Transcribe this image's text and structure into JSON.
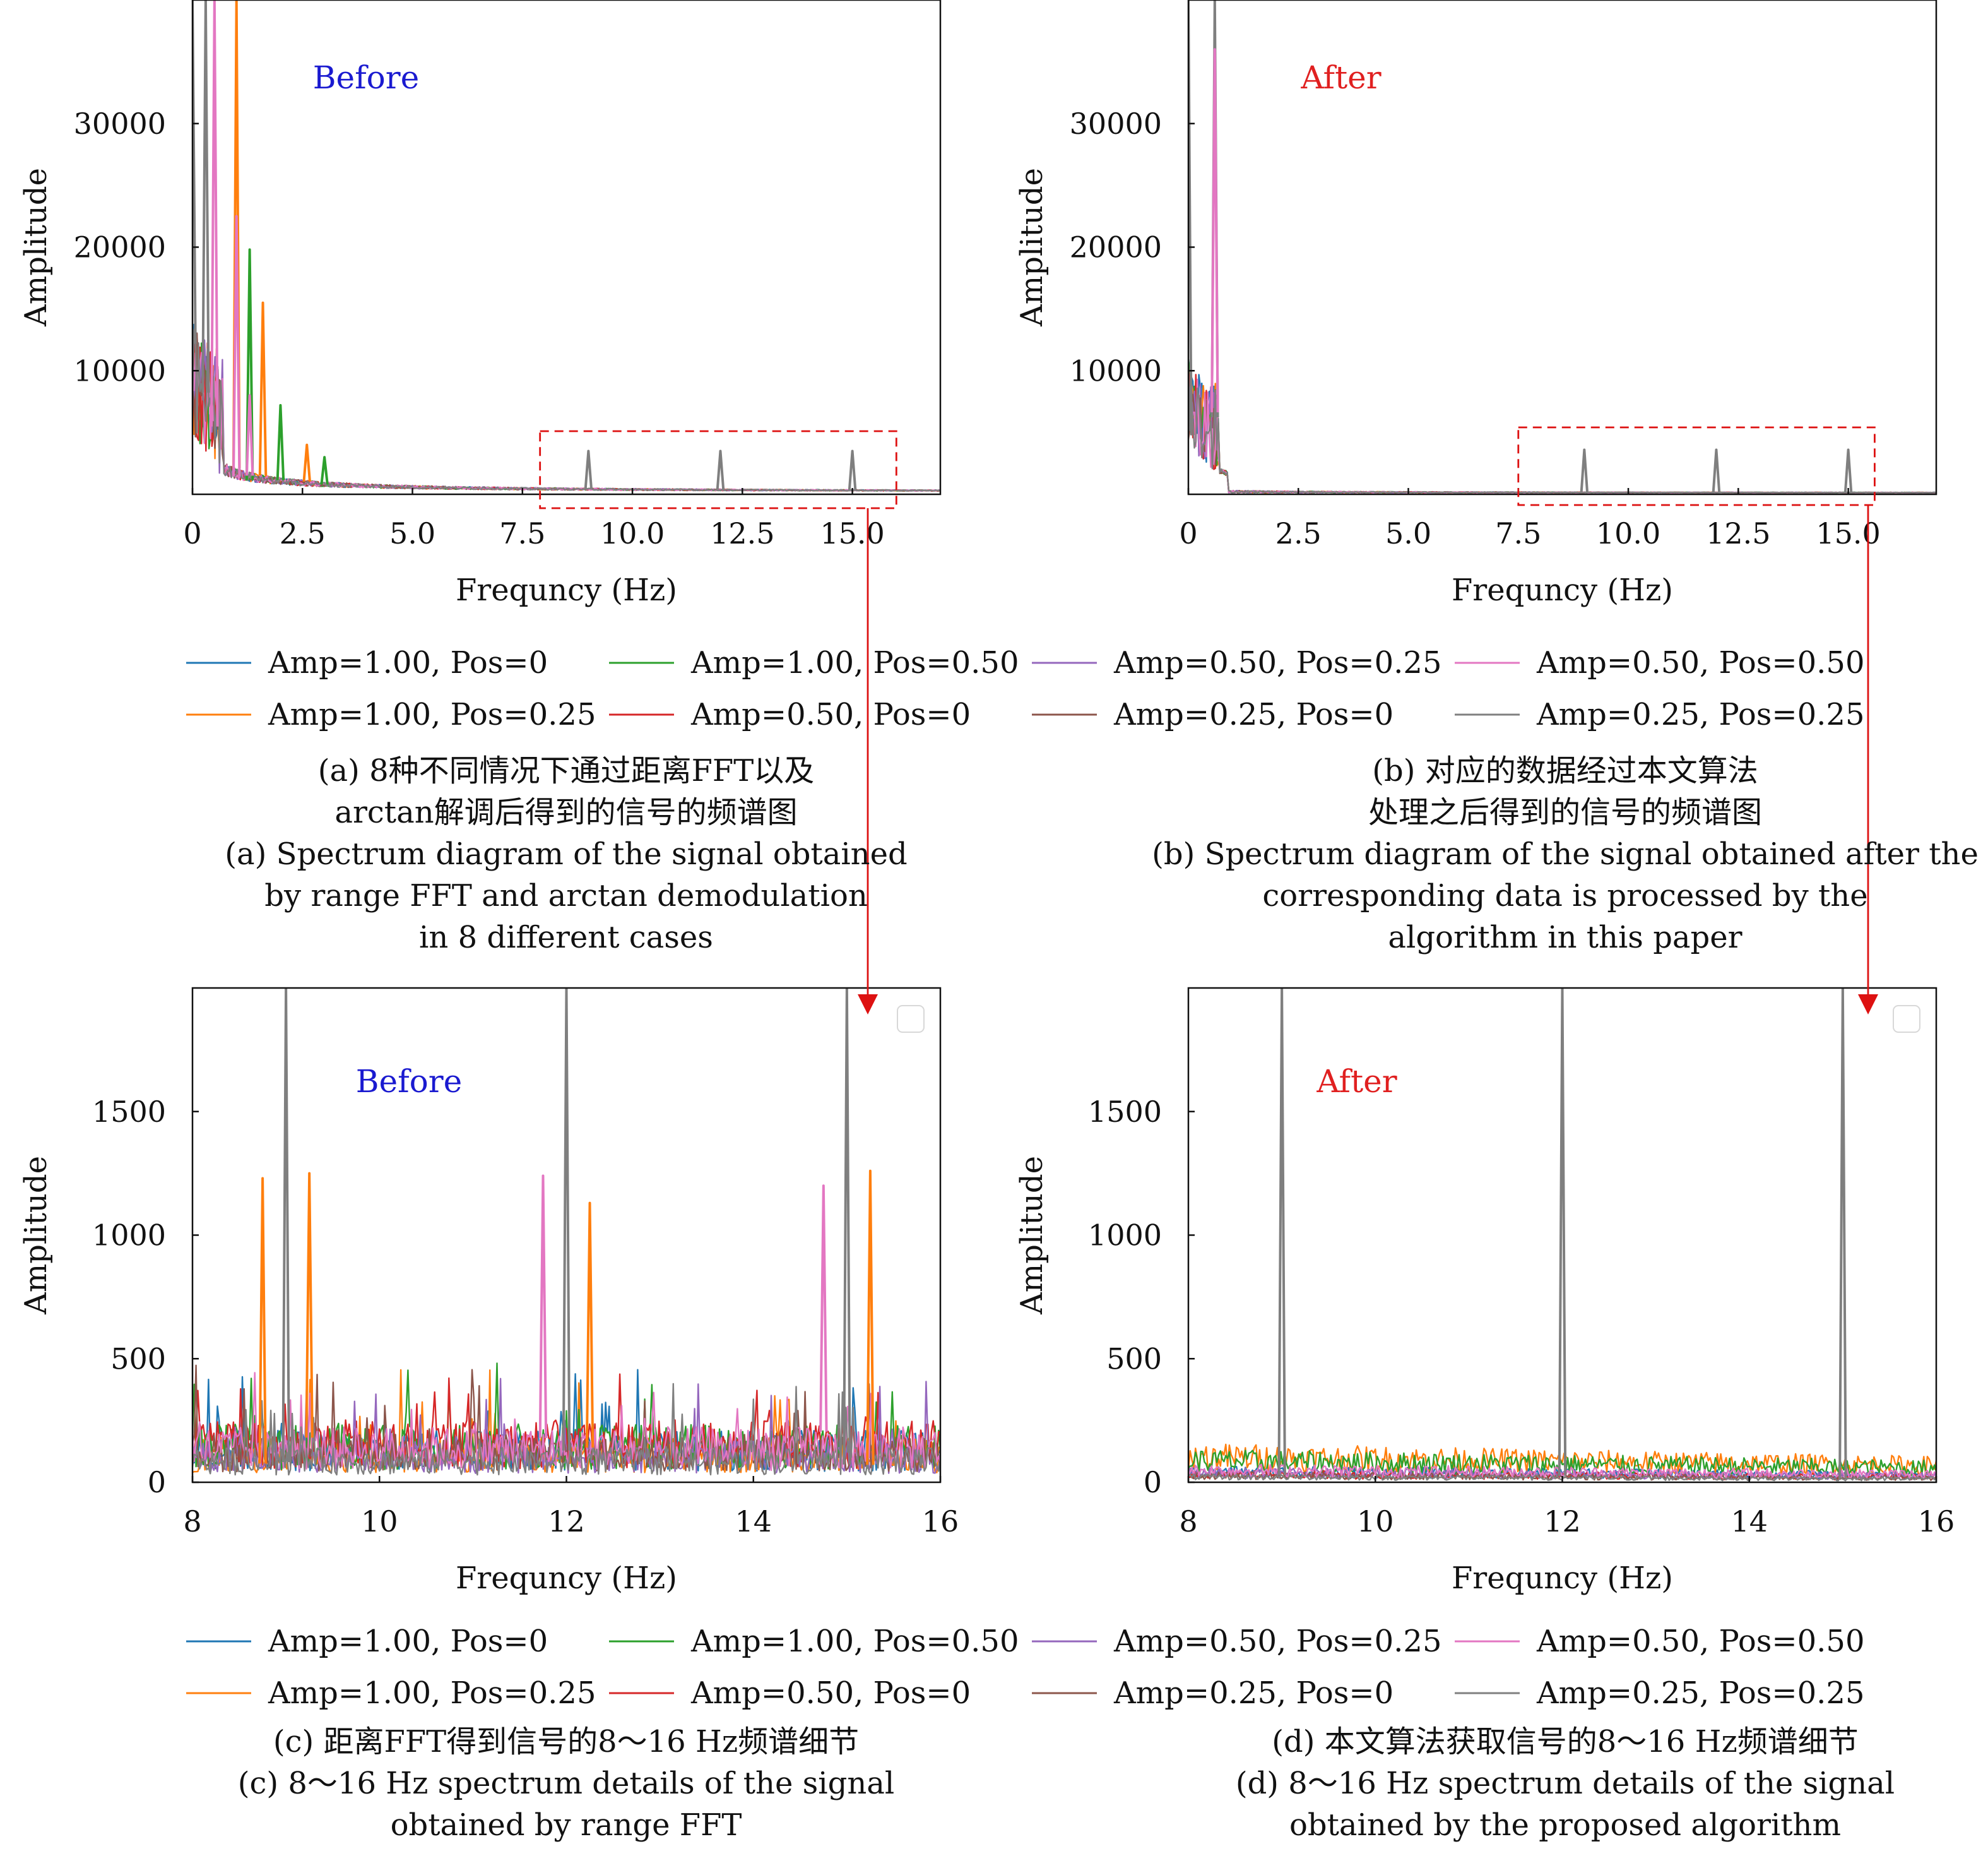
{
  "colors": {
    "c1": "#1f77b4",
    "c2": "#ff7f0e",
    "c3": "#2ca02c",
    "c4": "#d62728",
    "c5": "#9467bd",
    "c6": "#8c564b",
    "c7": "#e377c2",
    "c8": "#7f7f7f",
    "tag_before": "#1a1ad0",
    "tag_after": "#e02020",
    "zoom": "#dd1111"
  },
  "legend": [
    {
      "label": "Amp=1.00, Pos=0",
      "color": "#1f77b4"
    },
    {
      "label": "Amp=1.00, Pos=0.25",
      "color": "#ff7f0e"
    },
    {
      "label": "Amp=1.00, Pos=0.50",
      "color": "#2ca02c"
    },
    {
      "label": "Amp=0.50, Pos=0",
      "color": "#d62728"
    },
    {
      "label": "Amp=0.50, Pos=0.25",
      "color": "#9467bd"
    },
    {
      "label": "Amp=0.25, Pos=0",
      "color": "#8c564b"
    },
    {
      "label": "Amp=0.50, Pos=0.50",
      "color": "#e377c2"
    },
    {
      "label": "Amp=0.25, Pos=0.25",
      "color": "#7f7f7f"
    }
  ],
  "chart_data": [
    {
      "id": "a",
      "type": "line",
      "annotation": "Before",
      "xlabel": "Frequncy (Hz)",
      "ylabel": "Amplitude",
      "xlim": [
        0,
        17
      ],
      "ylim": [
        0,
        40000
      ],
      "xticks": [
        "0",
        "2.5",
        "5.0",
        "7.5",
        "10.0",
        "12.5",
        "15.0"
      ],
      "yticks": [
        "10000",
        "20000",
        "30000"
      ],
      "zoom_box_x": [
        7.9,
        16.0
      ],
      "series_peaks": [
        {
          "name": "Amp=1.00, Pos=0.25",
          "peaks": [
            [
              1.0,
              40000
            ],
            [
              1.6,
              15500
            ],
            [
              2.6,
              4000
            ]
          ]
        },
        {
          "name": "Amp=1.00, Pos=0.50",
          "peaks": [
            [
              1.3,
              19800
            ],
            [
              2.0,
              7200
            ],
            [
              3.0,
              3000
            ]
          ]
        },
        {
          "name": "Amp=0.50, Pos=0.50",
          "peaks": [
            [
              0.5,
              40000
            ],
            [
              1.0,
              22500
            ],
            [
              1.3,
              8000
            ]
          ]
        },
        {
          "name": "Amp=0.25, Pos=0.25",
          "peaks": [
            [
              0.0,
              40000
            ],
            [
              0.3,
              40000
            ],
            [
              9.0,
              3500
            ],
            [
              12.0,
              3500
            ],
            [
              15.0,
              3500
            ]
          ]
        }
      ],
      "caption_zh": [
        "(a) 8种不同情况下通过距离FFT以及",
        "arctan解调后得到的信号的频谱图"
      ],
      "caption_en": [
        "(a) Spectrum diagram of the signal obtained",
        "by range FFT and arctan demodulation",
        "in 8 different cases"
      ]
    },
    {
      "id": "b",
      "type": "line",
      "annotation": "After",
      "xlabel": "Frequncy (Hz)",
      "ylabel": "Amplitude",
      "xlim": [
        0,
        17
      ],
      "ylim": [
        0,
        40000
      ],
      "xticks": [
        "0",
        "2.5",
        "5.0",
        "7.5",
        "10.0",
        "12.5",
        "15.0"
      ],
      "yticks": [
        "10000",
        "20000",
        "30000"
      ],
      "zoom_box_x": [
        7.5,
        15.6
      ],
      "series_peaks": [
        {
          "name": "Amp=0.25, Pos=0.25",
          "peaks": [
            [
              0.0,
              40000
            ],
            [
              0.6,
              40000
            ],
            [
              9.0,
              3600
            ],
            [
              12.0,
              3600
            ],
            [
              15.0,
              3600
            ]
          ]
        },
        {
          "name": "Amp=0.50, Pos=0.50",
          "peaks": [
            [
              0.6,
              36000
            ]
          ]
        }
      ],
      "caption_zh": [
        "(b) 对应的数据经过本文算法",
        "处理之后得到的信号的频谱图"
      ],
      "caption_en": [
        "(b) Spectrum diagram of the signal obtained after the",
        "corresponding data is processed by the",
        "algorithm in this paper"
      ]
    },
    {
      "id": "c",
      "type": "line",
      "annotation": "Before",
      "xlabel": "Frequncy (Hz)",
      "ylabel": "Amplitude",
      "xlim": [
        8,
        16
      ],
      "ylim": [
        0,
        2000
      ],
      "xticks": [
        "8",
        "10",
        "12",
        "14",
        "16"
      ],
      "yticks": [
        "0",
        "500",
        "1000",
        "1500"
      ],
      "series_peaks": [
        {
          "name": "Amp=1.00, Pos=0.25",
          "peaks": [
            [
              8.75,
              1230
            ],
            [
              9.25,
              1250
            ],
            [
              12.25,
              1130
            ],
            [
              15.25,
              1260
            ]
          ]
        },
        {
          "name": "Amp=0.50, Pos=0.50",
          "peaks": [
            [
              11.75,
              1240
            ],
            [
              14.75,
              1200
            ]
          ]
        },
        {
          "name": "Amp=0.25, Pos=0.25",
          "peaks": [
            [
              9.0,
              2000
            ],
            [
              12.0,
              2000
            ],
            [
              15.0,
              2000
            ]
          ]
        }
      ],
      "caption_zh": [
        "(c) 距离FFT得到信号的8～16 Hz频谱细节"
      ],
      "caption_en": [
        "(c) 8～16 Hz spectrum details of the signal",
        "obtained by range FFT"
      ]
    },
    {
      "id": "d",
      "type": "line",
      "annotation": "After",
      "xlabel": "Frequncy (Hz)",
      "ylabel": "Amplitude",
      "xlim": [
        8,
        16
      ],
      "ylim": [
        0,
        2000
      ],
      "xticks": [
        "8",
        "10",
        "12",
        "14",
        "16"
      ],
      "yticks": [
        "0",
        "500",
        "1000",
        "1500"
      ],
      "series_peaks": [
        {
          "name": "Amp=0.25, Pos=0.25",
          "peaks": [
            [
              9.0,
              2000
            ],
            [
              12.0,
              2000
            ],
            [
              15.0,
              2000
            ]
          ]
        }
      ],
      "caption_zh": [
        "(d) 本文算法获取信号的8～16 Hz频谱细节"
      ],
      "caption_en": [
        "(d) 8～16 Hz spectrum details of the signal",
        "obtained by the proposed algorithm"
      ]
    }
  ]
}
